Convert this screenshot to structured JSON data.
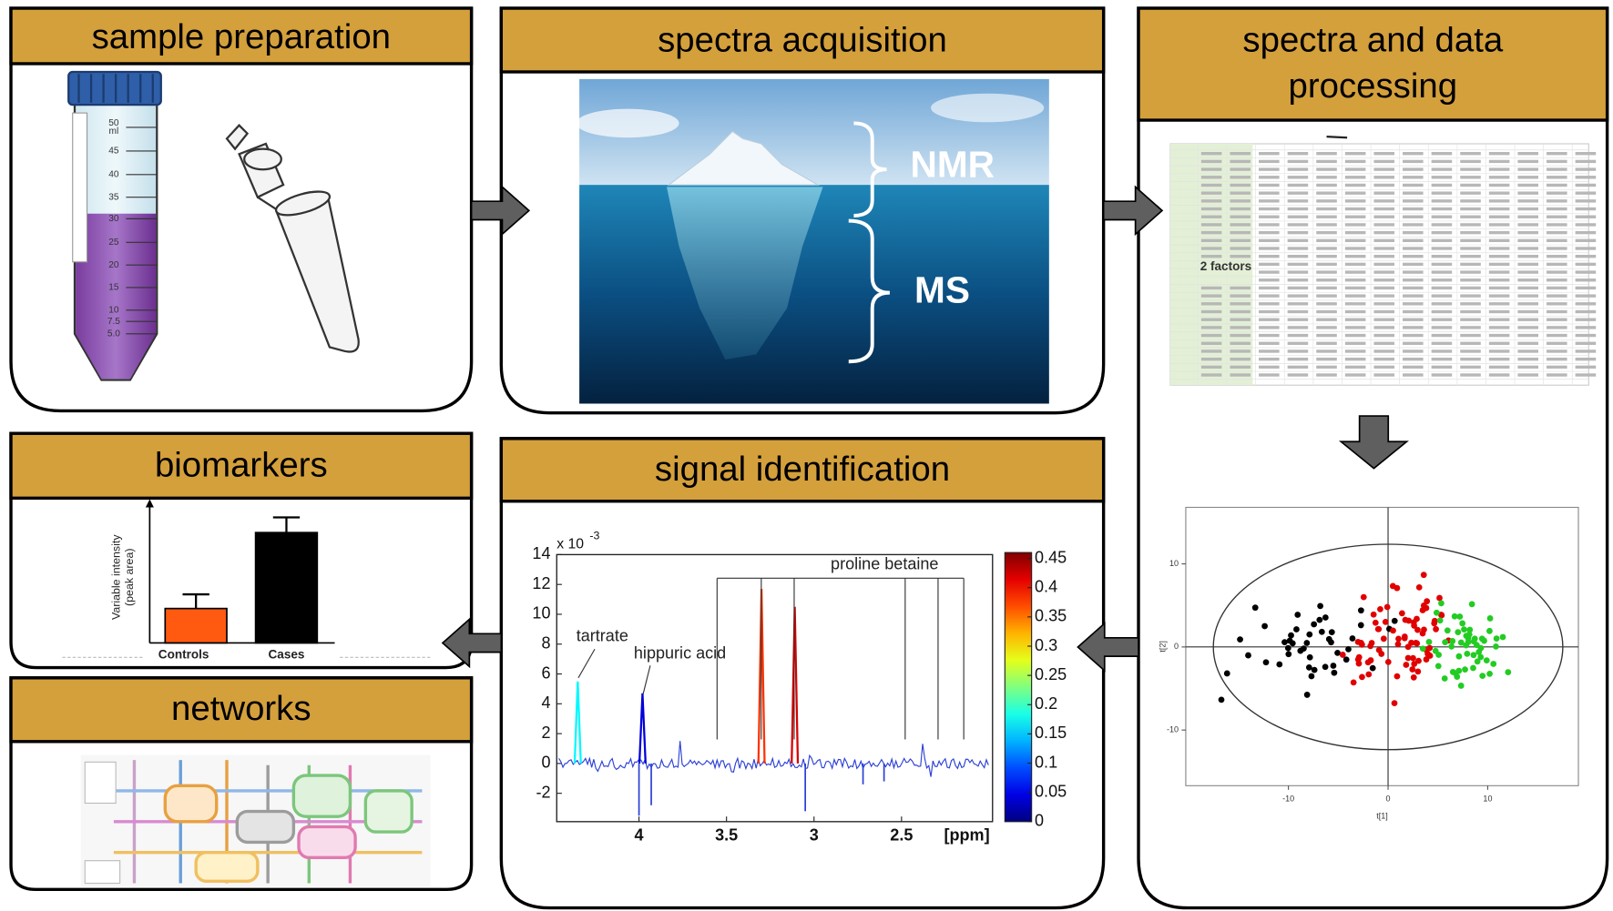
{
  "panels": {
    "sample_preparation": {
      "title": "sample preparation",
      "tube_top": [
        "50",
        "ml"
      ],
      "tube_marks": [
        "45",
        "40",
        "35",
        "30",
        "25",
        "20",
        "15",
        "10",
        "7.5",
        "5.0"
      ]
    },
    "spectra_acquisition": {
      "title": "spectra acquisition",
      "labels": [
        "NMR",
        "MS"
      ]
    },
    "spectra_processing": {
      "title_lines": [
        "spectra and data",
        "processing"
      ],
      "table_note": "2 factors",
      "scores_plot": {
        "type": "scatter",
        "xlabel": "t[1]",
        "ylabel": "t[2]",
        "xlim": [
          -20.3,
          19.1
        ],
        "ylim": [
          -16.7,
          16.8
        ],
        "xticks": [
          -10,
          0,
          10
        ],
        "yticks": [
          -10,
          0,
          10
        ]
      }
    },
    "biomarkers": {
      "title": "biomarkers",
      "chart": {
        "type": "bar",
        "ylabel_lines": [
          "Variable intensity",
          "(peak area)"
        ],
        "categories": [
          "Controls",
          "Cases"
        ],
        "values": [
          34,
          109
        ],
        "errors": [
          14,
          15
        ],
        "colors": [
          "#ff5a10",
          "#000000"
        ],
        "ylim": [
          0,
          140
        ]
      }
    },
    "networks": {
      "title": "networks"
    },
    "signal_identification": {
      "title": "signal identification",
      "chart": {
        "type": "line",
        "multiplier": "x 10",
        "multiplier_exp": "-3",
        "xlabel": "[ppm]",
        "xlim": [
          4.47,
          1.98
        ],
        "ylim": [
          -3.9,
          14
        ],
        "xticks": [
          4,
          3.5,
          3,
          2.5
        ],
        "yticks": [
          14,
          12,
          10,
          8,
          6,
          4,
          2,
          0,
          -2
        ],
        "peaks": {
          "x": [
            4.35,
            3.98,
            3.3,
            3.11
          ],
          "values": [
            5.5,
            4.7,
            11.7,
            10.5
          ],
          "correlation": [
            0.17,
            0.04,
            0.38,
            0.42
          ]
        },
        "annotations": [
          "tartrate",
          "hippuric acid",
          "proline betaine"
        ],
        "colorbar": {
          "lim": [
            0,
            0.46
          ],
          "ticks": [
            0.45,
            0.4,
            0.35,
            0.3,
            0.25,
            0.2,
            0.15,
            0.1,
            0.05,
            0
          ]
        }
      }
    }
  }
}
